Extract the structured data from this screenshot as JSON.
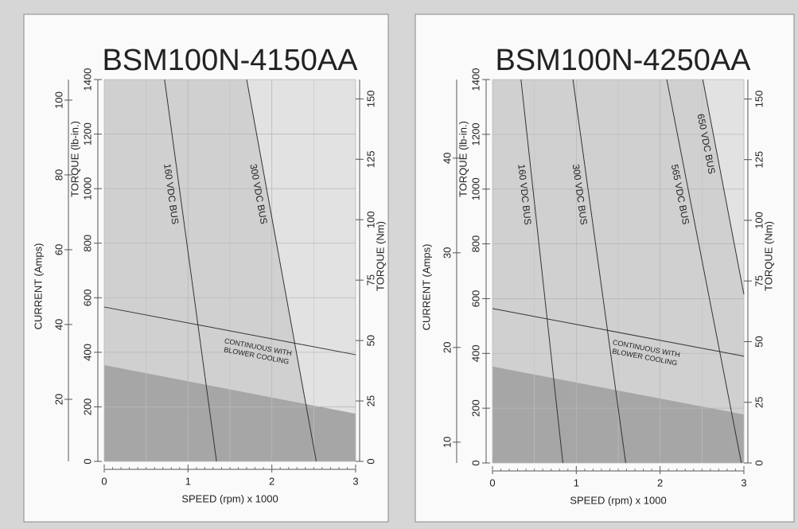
{
  "chart_data": [
    {
      "type": "line",
      "title": "BSM100N-4150AA",
      "xlabel": "SPEED (rpm) x 1000",
      "xlim": [
        0,
        3
      ],
      "xticks": [
        0,
        1,
        2,
        3
      ],
      "ylabel": "TORQUE (lb-in.)",
      "ylim": [
        0,
        1400
      ],
      "yticks": [
        0,
        200,
        400,
        600,
        800,
        1000,
        1200,
        1400
      ],
      "y2label": "TORQUE (Nm)",
      "y2lim": [
        0,
        158
      ],
      "y2ticks": [
        0,
        25,
        50,
        75,
        100,
        125,
        150
      ],
      "current_label": "CURRENT (Amps)",
      "current_lim": [
        3.4,
        105.5
      ],
      "current_ticks": [
        20,
        40,
        60,
        80,
        100
      ],
      "grid": true,
      "line_color": "#333333",
      "light_fill": "#d0d0d0",
      "dark_fill": "#a6a6a6",
      "plot_color": "#e2e2e2",
      "series": [
        {
          "name": "160 VDC BUS",
          "x": [
            0.72,
            1.34
          ],
          "values": [
            1400,
            0
          ]
        },
        {
          "name": "300 VDC BUS",
          "x": [
            1.7,
            2.53
          ],
          "values": [
            1400,
            0
          ],
          "fill": "left"
        },
        {
          "label": [
            "CONTINUOUS WITH",
            "BLOWER COOLING"
          ],
          "x": [
            0,
            3
          ],
          "values": [
            566,
            391
          ]
        },
        {
          "x": [
            0,
            3
          ],
          "values": [
            353,
            175
          ],
          "fill": "below"
        }
      ]
    },
    {
      "type": "line",
      "title": "BSM100N-4250AA",
      "xlabel": "SPEED (rpm) x 1000",
      "xlim": [
        0,
        3
      ],
      "xticks": [
        0,
        1,
        2,
        3
      ],
      "ylabel": "TORQUE (lb-in.)",
      "ylim": [
        0,
        1400
      ],
      "yticks": [
        0,
        200,
        400,
        600,
        800,
        1000,
        1200,
        1400
      ],
      "y2label": "TORQUE (Nm)",
      "y2lim": [
        0,
        158
      ],
      "y2ticks": [
        0,
        25,
        50,
        75,
        100,
        125,
        150
      ],
      "current_label": "CURRENT (Amps)",
      "current_lim": [
        7.8,
        48.3
      ],
      "current_ticks": [
        10,
        20,
        30,
        40
      ],
      "grid": true,
      "line_color": "#333333",
      "light_fill": "#d0d0d0",
      "dark_fill": "#a6a6a6",
      "plot_color": "#e2e2e2",
      "series": [
        {
          "name": "160 VDC BUS",
          "x": [
            0.34,
            0.84
          ],
          "values": [
            1400,
            0
          ]
        },
        {
          "name": "300 VDC BUS",
          "x": [
            0.96,
            1.59
          ],
          "values": [
            1400,
            0
          ]
        },
        {
          "name": "565 VDC BUS",
          "x": [
            2.08,
            2.97
          ],
          "values": [
            1400,
            0
          ]
        },
        {
          "name": "650 VDC BUS",
          "x": [
            2.51,
            3
          ],
          "values": [
            1400,
            616
          ],
          "fill": "left"
        },
        {
          "label": [
            "CONTINUOUS WITH",
            "BLOWER COOLING"
          ],
          "x": [
            0,
            3
          ],
          "values": [
            564,
            390
          ]
        },
        {
          "x": [
            0,
            3
          ],
          "values": [
            352,
            177
          ],
          "fill": "below"
        }
      ]
    }
  ]
}
